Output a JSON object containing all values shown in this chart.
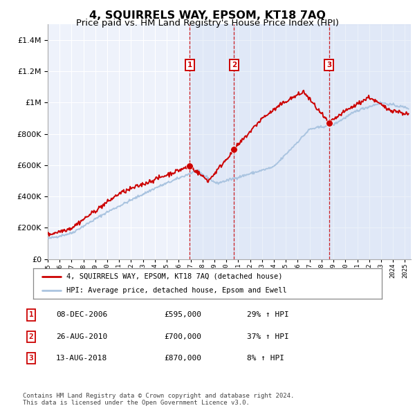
{
  "title": "4, SQUIRRELS WAY, EPSOM, KT18 7AQ",
  "subtitle": "Price paid vs. HM Land Registry's House Price Index (HPI)",
  "title_fontsize": 11.5,
  "subtitle_fontsize": 9.5,
  "ylim": [
    0,
    1500000
  ],
  "yticks": [
    0,
    200000,
    400000,
    600000,
    800000,
    1000000,
    1200000,
    1400000
  ],
  "background_color": "#ffffff",
  "plot_bg_color": "#eef2fb",
  "grid_color": "#ffffff",
  "sale_dates_num": [
    2006.93,
    2010.65,
    2018.62
  ],
  "sale_prices": [
    595000,
    700000,
    870000
  ],
  "sale_labels": [
    "1",
    "2",
    "3"
  ],
  "sale_label_color": "#cc0000",
  "sale_label_border": "#cc0000",
  "hpi_line_color": "#aac4e0",
  "price_line_color": "#cc0000",
  "legend_line1": "4, SQUIRRELS WAY, EPSOM, KT18 7AQ (detached house)",
  "legend_line2": "HPI: Average price, detached house, Epsom and Ewell",
  "table_rows": [
    [
      "1",
      "08-DEC-2006",
      "£595,000",
      "29% ↑ HPI"
    ],
    [
      "2",
      "26-AUG-2010",
      "£700,000",
      "37% ↑ HPI"
    ],
    [
      "3",
      "13-AUG-2018",
      "£870,000",
      "8% ↑ HPI"
    ]
  ],
  "footer": "Contains HM Land Registry data © Crown copyright and database right 2024.\nThis data is licensed under the Open Government Licence v3.0.",
  "dashed_vline_color": "#cc0000",
  "shade_color": "#c8d8f0"
}
